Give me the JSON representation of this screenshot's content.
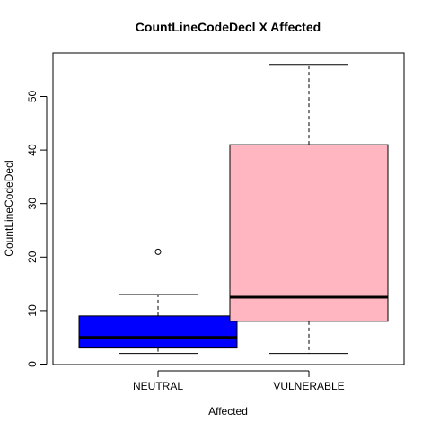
{
  "chart_data": {
    "type": "boxplot",
    "title": "CountLineCodeDecl X Affected",
    "xlabel": "Affected",
    "ylabel": "CountLineCodeDecl",
    "ylim": [
      0,
      58
    ],
    "yticks": [
      0,
      10,
      20,
      30,
      40,
      50
    ],
    "categories": [
      "NEUTRAL",
      "VULNERABLE"
    ],
    "boxes": [
      {
        "category": "NEUTRAL",
        "whisker_low": 2,
        "q1": 3,
        "median": 5,
        "q3": 9,
        "whisker_high": 13,
        "outliers": [
          21
        ],
        "color": "#0000ff"
      },
      {
        "category": "VULNERABLE",
        "whisker_low": 2,
        "q1": 8,
        "median": 12.5,
        "q3": 41,
        "whisker_high": 56,
        "outliers": [],
        "color": "#ffb6c1"
      }
    ],
    "grid": false
  }
}
